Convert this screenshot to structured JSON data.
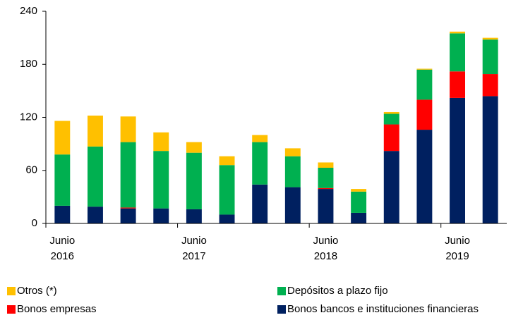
{
  "chart_data": {
    "type": "bar",
    "stacked": true,
    "categories": [
      "Junio 2016",
      null,
      null,
      null,
      "Junio 2017",
      null,
      null,
      null,
      "Junio 2018",
      null,
      null,
      null,
      "Junio 2019",
      null
    ],
    "series": [
      {
        "name": "Bonos bancos e instituciones financieras",
        "color": "#002060",
        "values": [
          20,
          19,
          17,
          17,
          16,
          10,
          44,
          41,
          39,
          12,
          82,
          106,
          142,
          144
        ]
      },
      {
        "name": "Bonos empresas",
        "color": "#ff0000",
        "values": [
          0,
          0,
          1,
          0,
          0,
          0,
          0,
          0,
          1,
          0,
          30,
          34,
          30,
          25
        ]
      },
      {
        "name": "Depósitos a plazo fijo",
        "color": "#00b050",
        "values": [
          58,
          68,
          74,
          65,
          64,
          56,
          48,
          35,
          23,
          24,
          12,
          34,
          43,
          39
        ]
      },
      {
        "name": "Otros (*)",
        "color": "#ffc000",
        "values": [
          38,
          35,
          29,
          21,
          12,
          10,
          8,
          9,
          6,
          3,
          2,
          1,
          2,
          2
        ]
      }
    ],
    "ylim": [
      0,
      240
    ],
    "yticks": [
      0,
      60,
      120,
      180,
      240
    ],
    "grid": false
  }
}
